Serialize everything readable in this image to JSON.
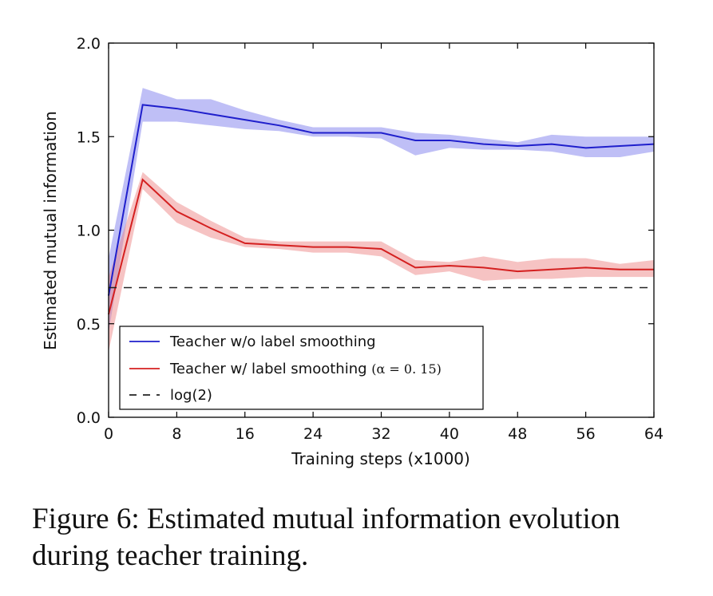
{
  "caption": "Figure 6: Estimated mutual information evolution during teacher training.",
  "chart_data": {
    "type": "line",
    "xlabel": "Training steps (x1000)",
    "ylabel": "Estimated mutual information",
    "xlim": [
      0,
      64
    ],
    "ylim": [
      0,
      2.0
    ],
    "xticks": [
      0,
      8,
      16,
      24,
      32,
      40,
      48,
      56,
      64
    ],
    "yticks": [
      0.0,
      0.5,
      1.0,
      1.5,
      2.0
    ],
    "xtick_labels": [
      "0",
      "8",
      "16",
      "24",
      "32",
      "40",
      "48",
      "56",
      "64"
    ],
    "ytick_labels": [
      "0.0",
      "0.5",
      "1.0",
      "1.5",
      "2.0"
    ],
    "grid": false,
    "legend_position": "lower-left",
    "series": [
      {
        "name": "Teacher w/o label smoothing",
        "color": "#1f1fcc",
        "band_color": "#8080ee",
        "x": [
          0,
          4,
          8,
          12,
          16,
          20,
          24,
          28,
          32,
          36,
          40,
          44,
          48,
          52,
          56,
          60,
          64
        ],
        "y": [
          0.65,
          1.67,
          1.65,
          1.62,
          1.59,
          1.56,
          1.52,
          1.52,
          1.52,
          1.48,
          1.48,
          1.46,
          1.45,
          1.46,
          1.44,
          1.45,
          1.46
        ],
        "lower": [
          0.45,
          1.58,
          1.58,
          1.56,
          1.54,
          1.53,
          1.5,
          1.5,
          1.49,
          1.4,
          1.44,
          1.43,
          1.43,
          1.42,
          1.39,
          1.39,
          1.42
        ],
        "upper": [
          0.85,
          1.76,
          1.7,
          1.7,
          1.64,
          1.59,
          1.55,
          1.55,
          1.55,
          1.52,
          1.51,
          1.49,
          1.47,
          1.51,
          1.5,
          1.5,
          1.5
        ]
      },
      {
        "name": "Teacher w/ label smoothing",
        "name_math": "(α = 0. 15)",
        "color": "#d42020",
        "band_color": "#ee8888",
        "x": [
          0,
          4,
          8,
          12,
          16,
          20,
          24,
          28,
          32,
          36,
          40,
          44,
          48,
          52,
          56,
          60,
          64
        ],
        "y": [
          0.55,
          1.27,
          1.1,
          1.01,
          0.93,
          0.92,
          0.91,
          0.91,
          0.9,
          0.8,
          0.81,
          0.8,
          0.78,
          0.79,
          0.8,
          0.79,
          0.79
        ],
        "lower": [
          0.35,
          1.22,
          1.04,
          0.96,
          0.91,
          0.9,
          0.88,
          0.88,
          0.86,
          0.76,
          0.78,
          0.73,
          0.74,
          0.74,
          0.75,
          0.75,
          0.75
        ],
        "upper": [
          0.75,
          1.31,
          1.15,
          1.05,
          0.96,
          0.94,
          0.94,
          0.94,
          0.94,
          0.84,
          0.83,
          0.86,
          0.83,
          0.85,
          0.85,
          0.82,
          0.84
        ]
      },
      {
        "name": "log(2)",
        "color": "#222222",
        "dashed": true,
        "x": [
          0,
          64
        ],
        "y": [
          0.693,
          0.693
        ]
      }
    ]
  }
}
